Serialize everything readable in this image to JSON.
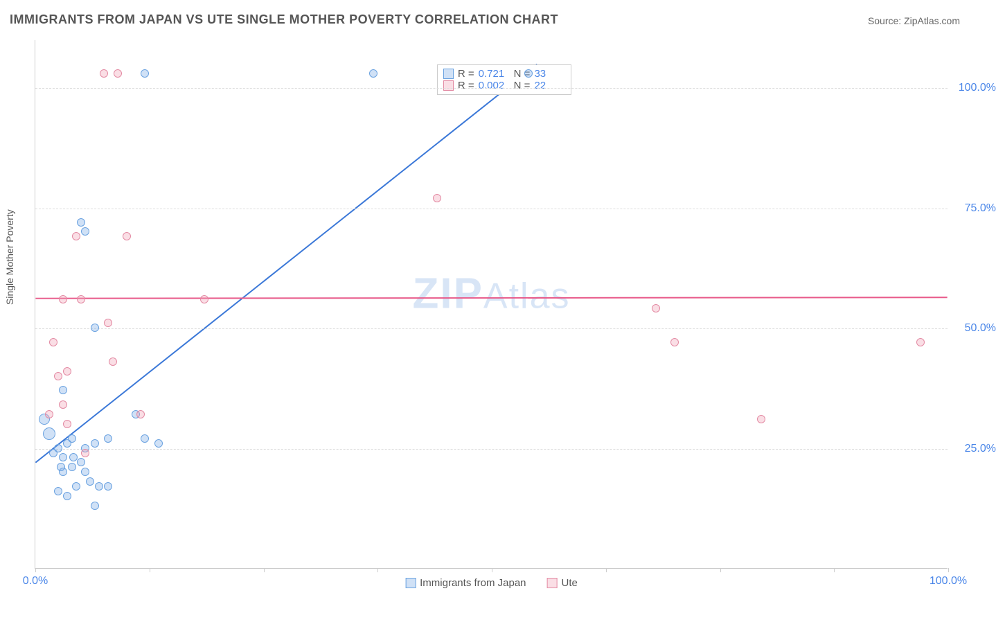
{
  "title": "IMMIGRANTS FROM JAPAN VS UTE SINGLE MOTHER POVERTY CORRELATION CHART",
  "source_label": "Source: ZipAtlas.com",
  "ylabel": "Single Mother Poverty",
  "watermark_zip": "ZIP",
  "watermark_atlas": "Atlas",
  "chart": {
    "type": "scatter",
    "background_color": "#ffffff",
    "grid_color": "#dddddd",
    "axis_color": "#cccccc",
    "tick_label_color": "#4a86e8",
    "xlim": [
      0,
      100
    ],
    "ylim": [
      0,
      110
    ],
    "ytick_positions": [
      25,
      50,
      75,
      100
    ],
    "ytick_labels": [
      "25.0%",
      "50.0%",
      "75.0%",
      "100.0%"
    ],
    "xtick_positions": [
      0,
      12.5,
      25,
      37.5,
      50,
      62.5,
      75,
      87.5,
      100
    ],
    "xtick_labels": {
      "0": "0.0%",
      "100": "100.0%"
    },
    "series": [
      {
        "name": "Immigrants from Japan",
        "color_fill": "rgba(120,170,230,0.35)",
        "color_stroke": "#6aa2e0",
        "marker_size": 12,
        "R": "0.721",
        "N": "33",
        "trend": {
          "x1": 0,
          "y1": 22,
          "x2": 55,
          "y2": 105,
          "color": "#3b78d8",
          "width": 2
        },
        "points": [
          {
            "x": 1.5,
            "y": 28,
            "r": 18
          },
          {
            "x": 1.0,
            "y": 31,
            "r": 16
          },
          {
            "x": 2.0,
            "y": 24
          },
          {
            "x": 2.5,
            "y": 25
          },
          {
            "x": 3.0,
            "y": 23
          },
          {
            "x": 3.5,
            "y": 26
          },
          {
            "x": 4.0,
            "y": 27
          },
          {
            "x": 3.0,
            "y": 20
          },
          {
            "x": 4.0,
            "y": 21
          },
          {
            "x": 5.0,
            "y": 22
          },
          {
            "x": 5.5,
            "y": 20
          },
          {
            "x": 6.0,
            "y": 18
          },
          {
            "x": 4.5,
            "y": 17
          },
          {
            "x": 7.0,
            "y": 17
          },
          {
            "x": 8.0,
            "y": 17
          },
          {
            "x": 6.5,
            "y": 13
          },
          {
            "x": 2.5,
            "y": 16
          },
          {
            "x": 3.5,
            "y": 15
          },
          {
            "x": 5.5,
            "y": 25
          },
          {
            "x": 6.5,
            "y": 26
          },
          {
            "x": 8.0,
            "y": 27
          },
          {
            "x": 12.0,
            "y": 27
          },
          {
            "x": 13.5,
            "y": 26
          },
          {
            "x": 3.0,
            "y": 37
          },
          {
            "x": 6.5,
            "y": 50
          },
          {
            "x": 5.5,
            "y": 70
          },
          {
            "x": 5.0,
            "y": 72
          },
          {
            "x": 11.0,
            "y": 32
          },
          {
            "x": 12.0,
            "y": 103
          },
          {
            "x": 37.0,
            "y": 103
          },
          {
            "x": 54.0,
            "y": 103
          },
          {
            "x": 4.2,
            "y": 23
          },
          {
            "x": 2.8,
            "y": 21
          }
        ]
      },
      {
        "name": "Ute",
        "color_fill": "rgba(240,160,180,0.35)",
        "color_stroke": "#e38aa3",
        "marker_size": 12,
        "R": "0.002",
        "N": "22",
        "trend": {
          "x1": 0,
          "y1": 56.2,
          "x2": 100,
          "y2": 56.4,
          "color": "#e85a8a",
          "width": 2
        },
        "points": [
          {
            "x": 7.5,
            "y": 103
          },
          {
            "x": 9.0,
            "y": 103
          },
          {
            "x": 4.5,
            "y": 69
          },
          {
            "x": 10.0,
            "y": 69
          },
          {
            "x": 3.0,
            "y": 56
          },
          {
            "x": 5.0,
            "y": 56
          },
          {
            "x": 18.5,
            "y": 56
          },
          {
            "x": 2.0,
            "y": 47
          },
          {
            "x": 8.0,
            "y": 51
          },
          {
            "x": 8.5,
            "y": 43
          },
          {
            "x": 2.5,
            "y": 40
          },
          {
            "x": 3.5,
            "y": 41
          },
          {
            "x": 1.5,
            "y": 32
          },
          {
            "x": 3.5,
            "y": 30
          },
          {
            "x": 5.5,
            "y": 24
          },
          {
            "x": 11.5,
            "y": 32
          },
          {
            "x": 44.0,
            "y": 77
          },
          {
            "x": 68.0,
            "y": 54
          },
          {
            "x": 70.0,
            "y": 47
          },
          {
            "x": 79.5,
            "y": 31
          },
          {
            "x": 97.0,
            "y": 47
          },
          {
            "x": 3.0,
            "y": 34
          }
        ]
      }
    ]
  },
  "legend_top": {
    "R_label": "R =",
    "N_label": "N ="
  },
  "legend_bottom": {
    "series1": "Immigrants from Japan",
    "series2": "Ute"
  }
}
